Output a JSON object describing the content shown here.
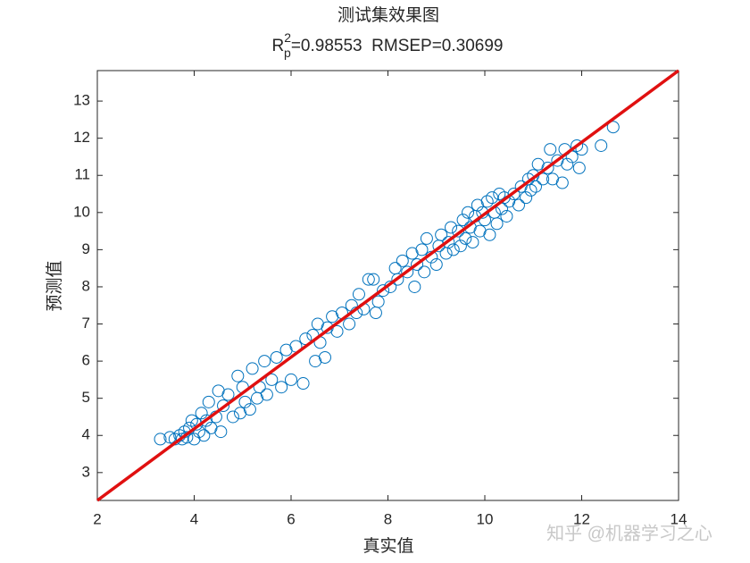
{
  "chart_data": {
    "type": "scatter",
    "title": "测试集效果图",
    "subtitle": {
      "base": "R",
      "sup": "2",
      "sub": "p",
      "rest": "=0.98553  RMSEP=0.30699"
    },
    "xlabel": "真实值",
    "ylabel": "预测值",
    "color": "#0072BD",
    "fit_color": "#e01010",
    "xlim": [
      2,
      14
    ],
    "ylim": [
      2.25,
      13.82
    ],
    "xticks": [
      2,
      4,
      6,
      8,
      10,
      12,
      14
    ],
    "yticks": [
      3,
      4,
      5,
      6,
      7,
      8,
      9,
      10,
      11,
      12,
      13
    ],
    "x": [
      3.3,
      3.5,
      3.6,
      3.7,
      3.75,
      3.8,
      3.85,
      3.9,
      3.95,
      4.0,
      4.05,
      4.1,
      4.15,
      4.2,
      4.25,
      4.3,
      4.35,
      4.45,
      4.5,
      4.55,
      4.6,
      4.7,
      4.8,
      4.9,
      4.95,
      5.0,
      5.05,
      5.15,
      5.2,
      5.3,
      5.35,
      5.45,
      5.5,
      5.6,
      5.7,
      5.8,
      5.9,
      6.0,
      6.1,
      6.25,
      6.3,
      6.45,
      6.5,
      6.55,
      6.6,
      6.7,
      6.75,
      6.85,
      6.95,
      7.05,
      7.2,
      7.25,
      7.35,
      7.4,
      7.5,
      7.6,
      7.7,
      7.75,
      7.8,
      7.9,
      8.05,
      8.15,
      8.2,
      8.3,
      8.4,
      8.5,
      8.55,
      8.6,
      8.7,
      8.75,
      8.8,
      8.9,
      9.0,
      9.05,
      9.1,
      9.2,
      9.25,
      9.3,
      9.35,
      9.45,
      9.5,
      9.55,
      9.6,
      9.65,
      9.7,
      9.75,
      9.8,
      9.85,
      9.9,
      9.95,
      10.0,
      10.05,
      10.1,
      10.15,
      10.2,
      10.25,
      10.3,
      10.35,
      10.4,
      10.45,
      10.5,
      10.6,
      10.7,
      10.75,
      10.85,
      10.9,
      10.95,
      11.0,
      11.05,
      11.1,
      11.2,
      11.3,
      11.35,
      11.4,
      11.5,
      11.6,
      11.65,
      11.7,
      11.8,
      11.9,
      11.95,
      12.0,
      12.4,
      12.65
    ],
    "y": [
      3.9,
      3.95,
      3.9,
      4.0,
      3.9,
      4.1,
      3.95,
      4.2,
      4.4,
      3.9,
      4.3,
      4.1,
      4.6,
      4.0,
      4.4,
      4.9,
      4.2,
      4.5,
      5.2,
      4.1,
      4.8,
      5.1,
      4.5,
      5.6,
      4.6,
      5.3,
      4.9,
      4.7,
      5.8,
      5.0,
      5.3,
      6.0,
      5.1,
      5.5,
      6.1,
      5.3,
      6.3,
      5.5,
      6.4,
      5.4,
      6.6,
      6.7,
      6.0,
      7.0,
      6.5,
      6.1,
      6.9,
      7.2,
      6.8,
      7.3,
      7.0,
      7.5,
      7.3,
      7.8,
      7.4,
      8.2,
      8.2,
      7.3,
      7.6,
      7.9,
      8.0,
      8.5,
      8.2,
      8.7,
      8.4,
      8.9,
      8.0,
      8.6,
      9.0,
      8.4,
      9.3,
      8.8,
      8.6,
      9.1,
      9.4,
      8.9,
      9.2,
      9.6,
      9.0,
      9.5,
      9.1,
      9.8,
      9.3,
      10.0,
      9.6,
      9.2,
      9.9,
      10.2,
      9.5,
      10.0,
      9.8,
      10.3,
      9.4,
      10.4,
      10.0,
      9.7,
      10.5,
      10.1,
      10.4,
      9.9,
      10.3,
      10.5,
      10.2,
      10.7,
      10.4,
      10.9,
      10.6,
      11.0,
      10.7,
      11.3,
      10.9,
      11.2,
      11.7,
      10.9,
      11.4,
      10.8,
      11.7,
      11.3,
      11.5,
      11.8,
      11.2,
      11.7,
      11.8,
      12.3
    ],
    "fit_line": {
      "x": [
        2,
        14
      ],
      "y": [
        2.25,
        13.82
      ]
    }
  },
  "watermark": "知乎 @机器学习之心"
}
